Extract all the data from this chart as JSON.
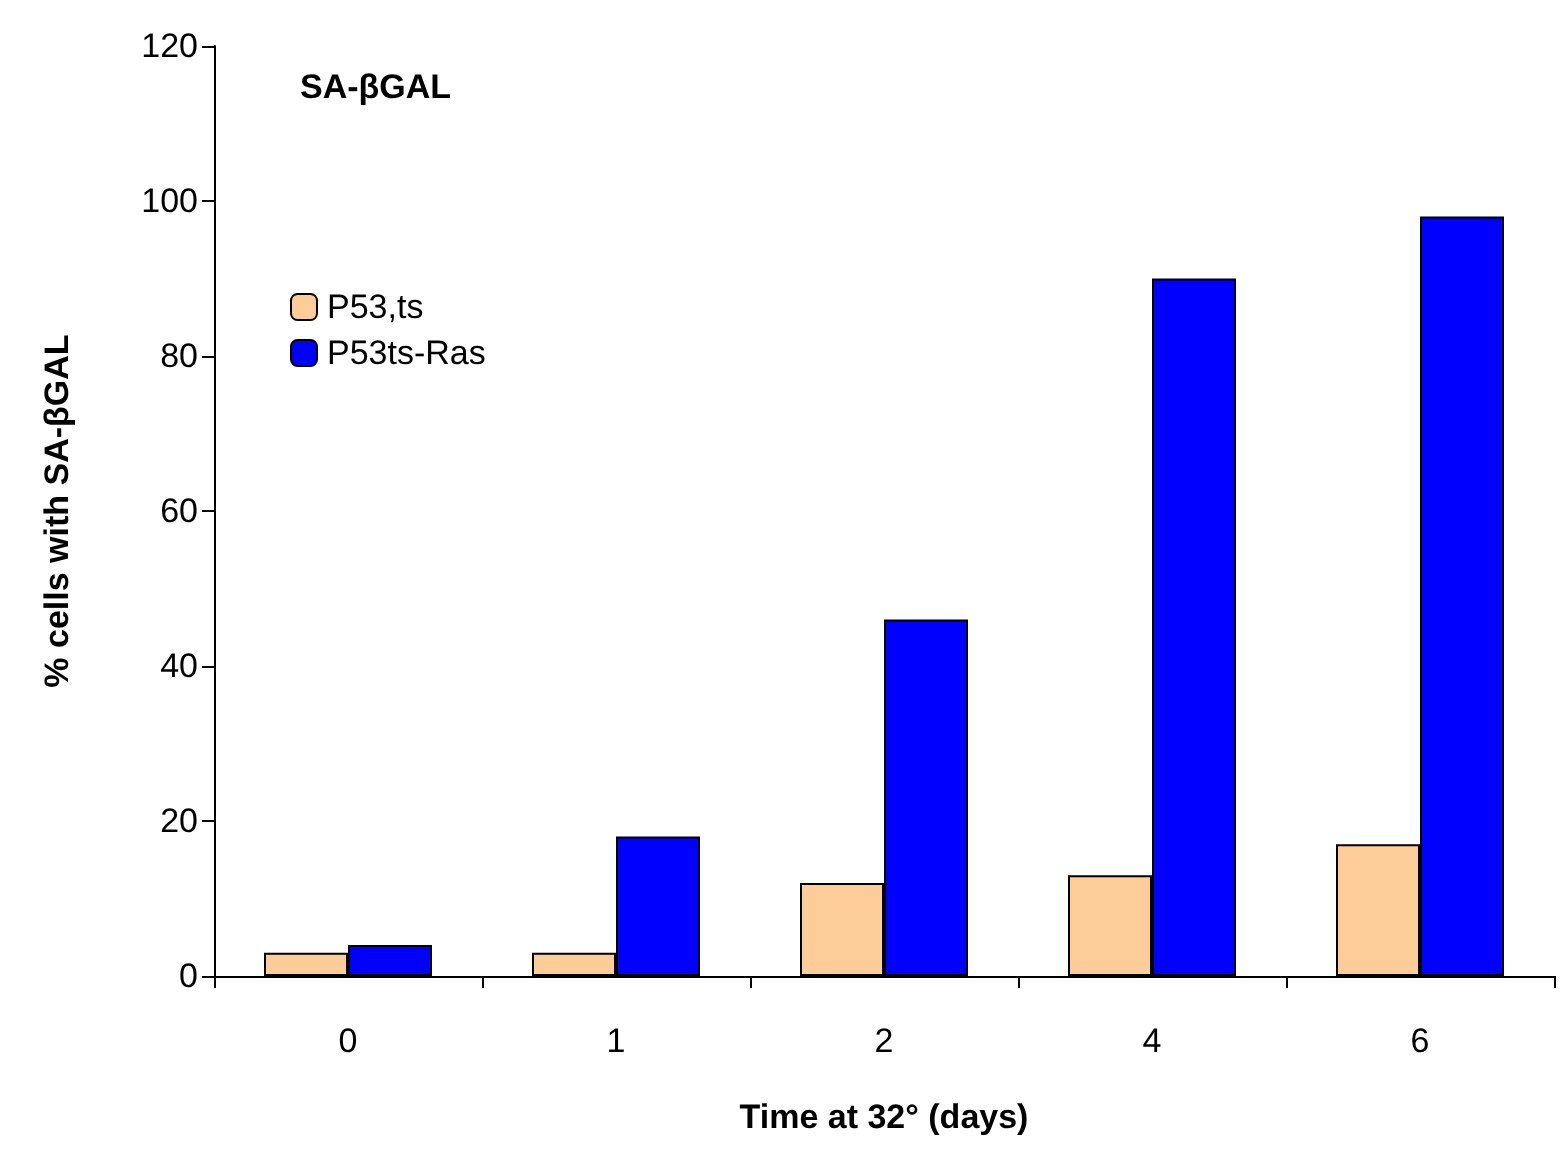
{
  "chart_data": {
    "type": "bar",
    "title": "SA-βGAL",
    "xlabel": "Time at 32° (days)",
    "ylabel": "% cells with SA-βGAL",
    "categories": [
      "0",
      "1",
      "2",
      "4",
      "6"
    ],
    "series": [
      {
        "name": "P53,ts",
        "color": "#fccc99",
        "values": [
          3,
          3,
          12,
          13,
          17
        ]
      },
      {
        "name": "P53ts-Ras",
        "color": "#0000ff",
        "values": [
          4,
          18,
          46,
          90,
          98
        ]
      }
    ],
    "ylim": [
      0,
      120
    ],
    "yticks": [
      0,
      20,
      40,
      60,
      80,
      100,
      120
    ],
    "grid": false,
    "legend": "top left"
  }
}
